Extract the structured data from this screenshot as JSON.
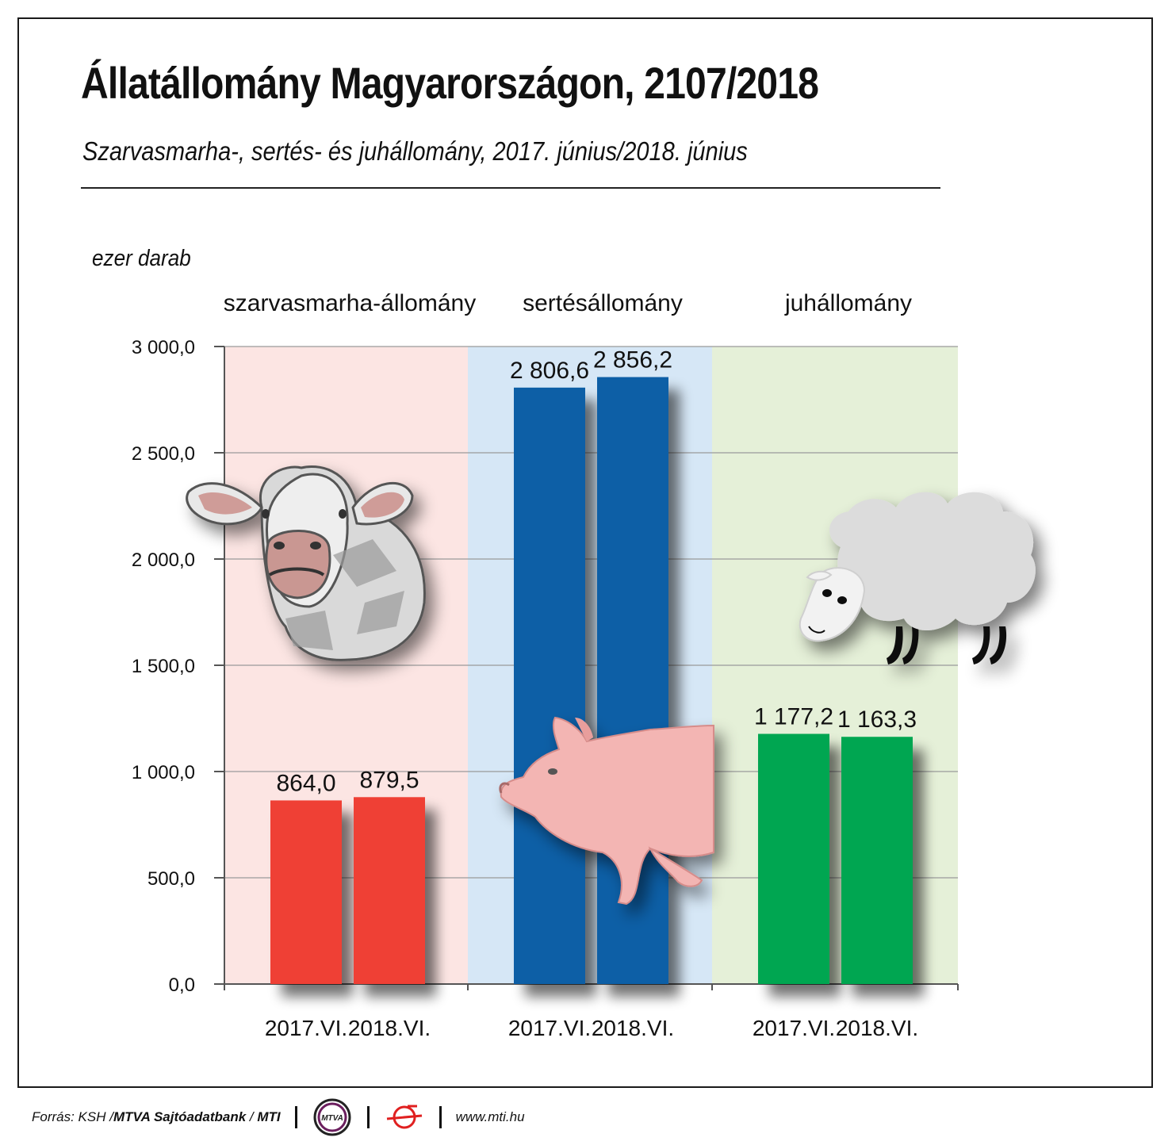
{
  "header": {
    "title": "Állatállomány Magyarországon, 2107/2018",
    "subtitle": "Szarvasmarha-, sertés- és juhállomány, 2017. június/2018. június"
  },
  "chart_data": {
    "type": "bar",
    "unit_label": "ezer darab",
    "ylim": [
      0,
      3000
    ],
    "yticks": [
      "0,0",
      "500,0",
      "1 000,0",
      "1 500,0",
      "2 000,0",
      "2 500,0",
      "3 000,0"
    ],
    "ytick_values": [
      0,
      500,
      1000,
      1500,
      2000,
      2500,
      3000
    ],
    "grid": true,
    "groups": [
      {
        "name": "szarvasmarha-állomány",
        "color": "#ef4136",
        "panel_color": "#fce5e3",
        "icon": "cow-icon",
        "categories": [
          "2017.VI.",
          "2018.VI."
        ],
        "values": [
          864.0,
          879.5
        ],
        "labels": [
          "864,0",
          "879,5"
        ]
      },
      {
        "name": "sertésállomány",
        "color": "#0f5fa6",
        "panel_color": "#d6e7f6",
        "icon": "pig-icon",
        "categories": [
          "2017.VI.",
          "2018.VI."
        ],
        "values": [
          2806.6,
          2856.2
        ],
        "labels": [
          "2 806,6",
          "2 856,2"
        ]
      },
      {
        "name": "juhállomány",
        "color": "#00a651",
        "panel_color": "#e5f0d8",
        "icon": "sheep-icon",
        "categories": [
          "2017.VI.",
          "2018.VI."
        ],
        "values": [
          1177.2,
          1163.3
        ],
        "labels": [
          "1 177,2",
          "1 163,3"
        ]
      }
    ]
  },
  "footer": {
    "source_prefix": "Forrás: KSH / ",
    "source_bold": "MTVA Sajtóadatbank",
    "source_sep": " / ",
    "source_mti": "MTI",
    "mtva_logo_text": "MTVA",
    "url": "www.mti.hu"
  }
}
